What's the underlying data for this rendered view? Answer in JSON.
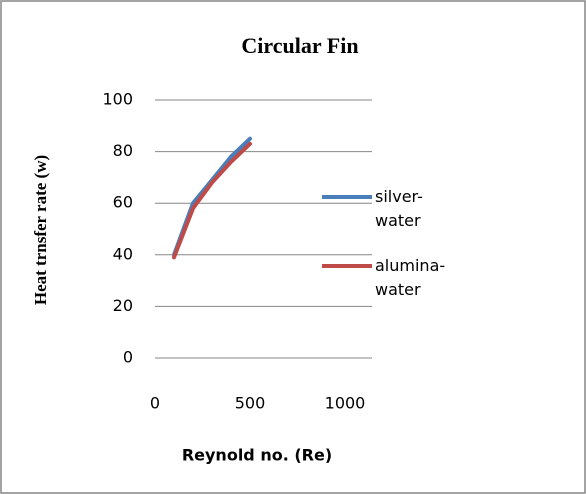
{
  "chart_data": {
    "type": "line",
    "title": "Circular Fin",
    "x_label": "Reynold no. (Re)",
    "y_label": "Heat trnsfer rate (w)",
    "x": [
      100,
      200,
      300,
      400,
      500
    ],
    "series": [
      {
        "name": "silver-water",
        "color": "#4a7ebb",
        "values": [
          40,
          60,
          69,
          78,
          85
        ]
      },
      {
        "name": "alumina-water",
        "color": "#be4b48",
        "values": [
          39,
          58,
          68,
          76,
          83
        ]
      }
    ],
    "xlim": [
      0,
      1000
    ],
    "xticks": [
      0,
      500,
      1000
    ],
    "ylim": [
      0,
      100
    ],
    "yticks": [
      0,
      20,
      40,
      60,
      80,
      100
    ],
    "grid": true,
    "legend": "right"
  }
}
